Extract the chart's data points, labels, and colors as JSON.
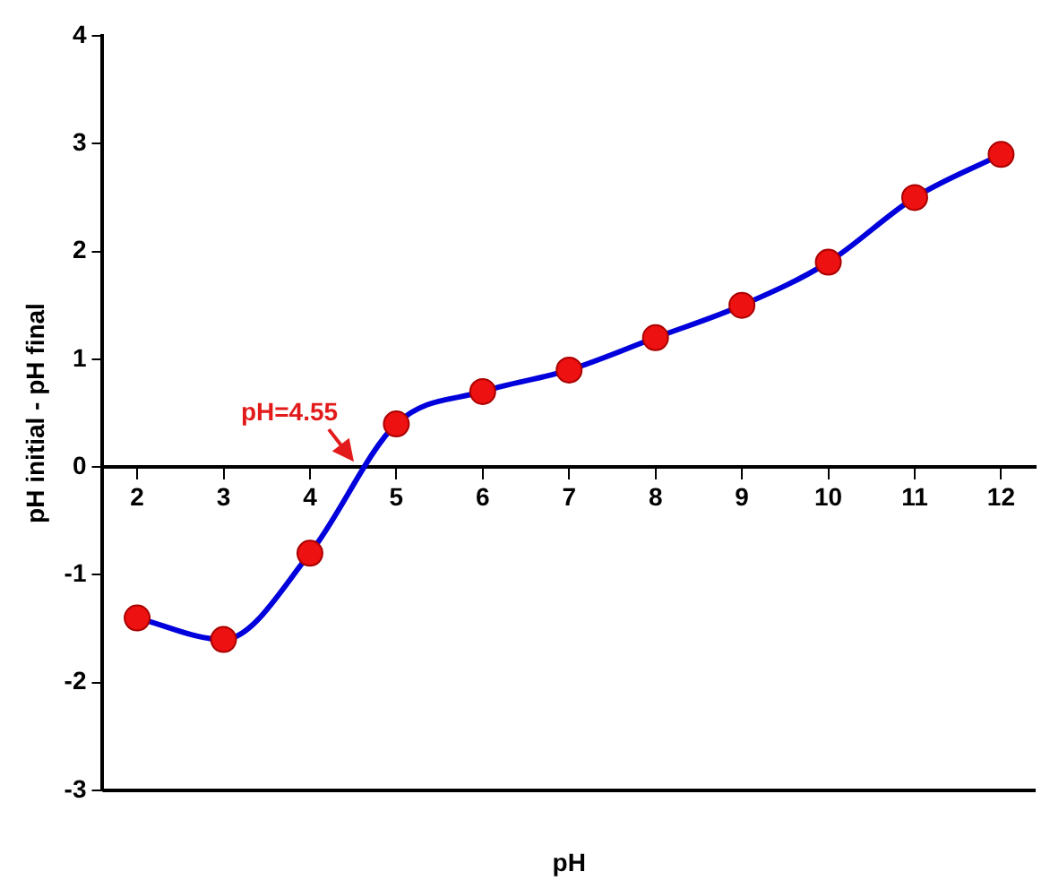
{
  "chart_data": {
    "type": "line",
    "xlabel": "pH",
    "ylabel": "pH initial - pH final",
    "x": [
      2,
      3,
      4,
      5,
      6,
      7,
      8,
      9,
      10,
      11,
      12
    ],
    "series": [
      {
        "color": "#0000dd",
        "values": [
          -1.4,
          -1.6,
          -0.8,
          0.4,
          0.7,
          0.9,
          1.2,
          1.5,
          1.9,
          2.5,
          2.9
        ]
      }
    ],
    "xlim": [
      1.6,
      12.4
    ],
    "xticks": [
      2,
      3,
      4,
      5,
      6,
      7,
      8,
      9,
      10,
      11,
      12
    ],
    "ylim": [
      -3,
      4
    ],
    "yticks": [
      -3,
      -2,
      -1,
      0,
      1,
      2,
      3,
      4
    ],
    "marker": "circle",
    "line_style": "solid",
    "grid": false,
    "legend": false,
    "annotations": [
      {
        "text": "pH=4.55",
        "x": 4.55,
        "y": 0
      }
    ]
  }
}
